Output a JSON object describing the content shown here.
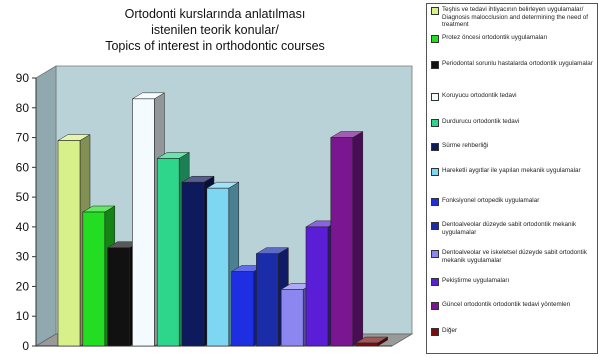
{
  "chart_data": {
    "type": "bar",
    "title": "Ortodonti  kurslarında anlatılması\nistenilen teorik konular/\nTopics of interest in orthodontic courses",
    "xlabel": "",
    "ylabel": "",
    "ylim": [
      0,
      90
    ],
    "yticks": [
      0,
      10,
      20,
      30,
      40,
      50,
      60,
      70,
      80,
      90
    ],
    "grid": false,
    "legend_position": "right",
    "three_d": true,
    "series": [
      {
        "name": "Teşhis ve tedavi ihtiyacının belirleyen uygulamalar/ Diagnosis malocclusion and determining the need of treatment",
        "value": 69,
        "color": "#d8f08a"
      },
      {
        "name": "Protez  öncesi ortodontik uygulamaları",
        "value": 45,
        "color": "#22dd22"
      },
      {
        "name": "Periodontal sorunlu hastalarda ortodontik uygulamalar",
        "value": 33,
        "color": "#111111"
      },
      {
        "name": "Koruyucu ortodontik tedavi",
        "value": 83,
        "color": "#f3fbff"
      },
      {
        "name": "Durdurucu ortodontik tedavi",
        "value": 63,
        "color": "#2ed68c"
      },
      {
        "name": "Sürme rehberliği",
        "value": 55,
        "color": "#0e1a5e"
      },
      {
        "name": "Hareketli aygıtlar ile yapılan mekanik uygulamalar",
        "value": 53,
        "color": "#7dd6f2"
      },
      {
        "name": "Fonksiyonel ortopedik uygulamalar",
        "value": 25,
        "color": "#1d2fe0"
      },
      {
        "name": "Dentoalveolar düzeyde sabit ortodontik mekanik uygulamalar",
        "value": 31,
        "color": "#1a2ca8"
      },
      {
        "name": "Dentoalveolar ve iskeletsel düzeyde sabit ortodontik mekanik uygulamalar",
        "value": 19,
        "color": "#8c86f0"
      },
      {
        "name": "Pekiştirme uygulamaları",
        "value": 40,
        "color": "#5a1ed6"
      },
      {
        "name": "Güncel ortodontik ortodontik tedavi yöntemlen",
        "value": 70,
        "color": "#7a1690"
      },
      {
        "name": "Diğer",
        "value": 1,
        "color": "#7a0d0d"
      }
    ]
  }
}
